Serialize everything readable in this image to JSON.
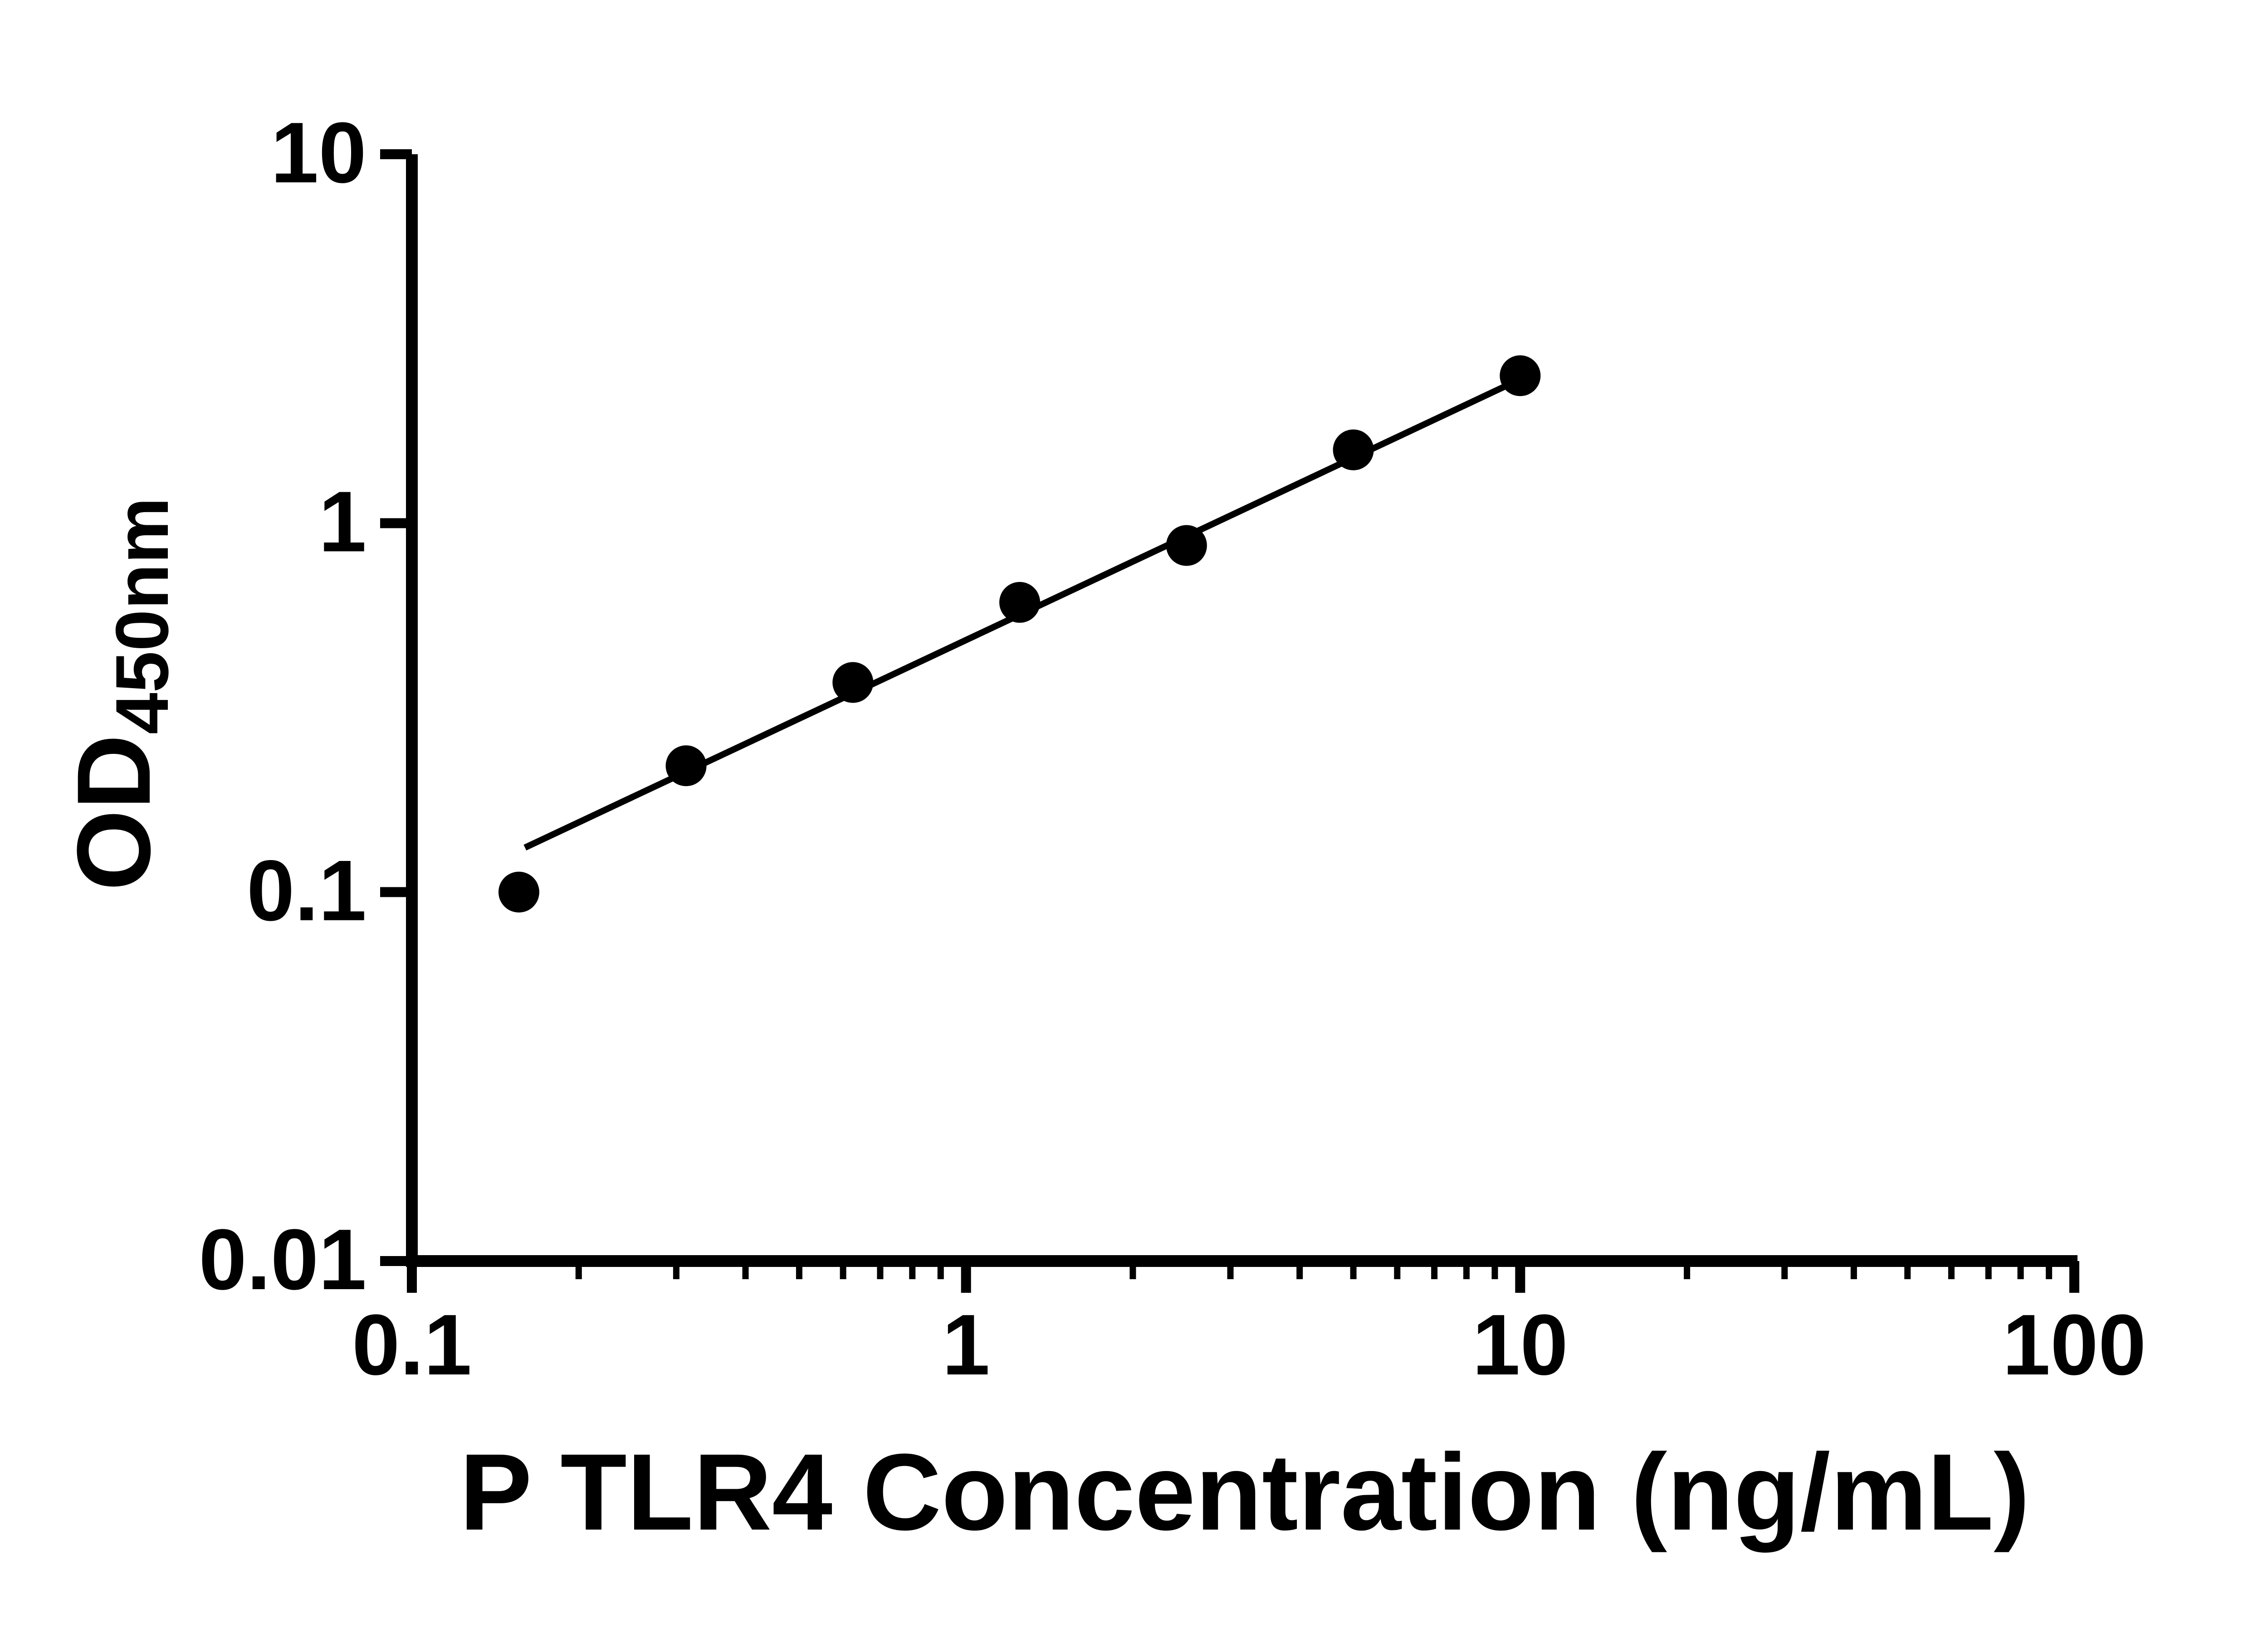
{
  "chart_data": {
    "type": "scatter",
    "title": "",
    "xlabel": "P TLR4 Concentration (ng/mL)",
    "ylabel_main": "OD",
    "ylabel_sub": "450nm",
    "xscale": "log",
    "yscale": "log",
    "xlim": [
      0.1,
      100
    ],
    "ylim": [
      0.01,
      10
    ],
    "grid": false,
    "legend": "none",
    "x_ticks": [
      {
        "value": 0.1,
        "label": "0.1"
      },
      {
        "value": 1,
        "label": "1"
      },
      {
        "value": 10,
        "label": "10"
      },
      {
        "value": 100,
        "label": "100"
      }
    ],
    "y_ticks": [
      {
        "value": 0.01,
        "label": "0.01"
      },
      {
        "value": 0.1,
        "label": "0.1"
      },
      {
        "value": 1,
        "label": "1"
      },
      {
        "value": 10,
        "label": "10"
      }
    ],
    "minor_ticks_x": true,
    "minor_ticks_y": false,
    "series": [
      {
        "name": "standard-curve-points",
        "marker": "circle",
        "color": "#000000",
        "x": [
          0.156,
          0.3125,
          0.625,
          1.25,
          2.5,
          5,
          10
        ],
        "y": [
          0.1,
          0.22,
          0.37,
          0.61,
          0.87,
          1.58,
          2.51
        ]
      }
    ],
    "trendline": {
      "color": "#000000",
      "x": [
        0.16,
        10.2
      ],
      "y": [
        0.132,
        2.49
      ]
    }
  },
  "colors": {
    "background": "#ffffff",
    "foreground": "#000000"
  }
}
